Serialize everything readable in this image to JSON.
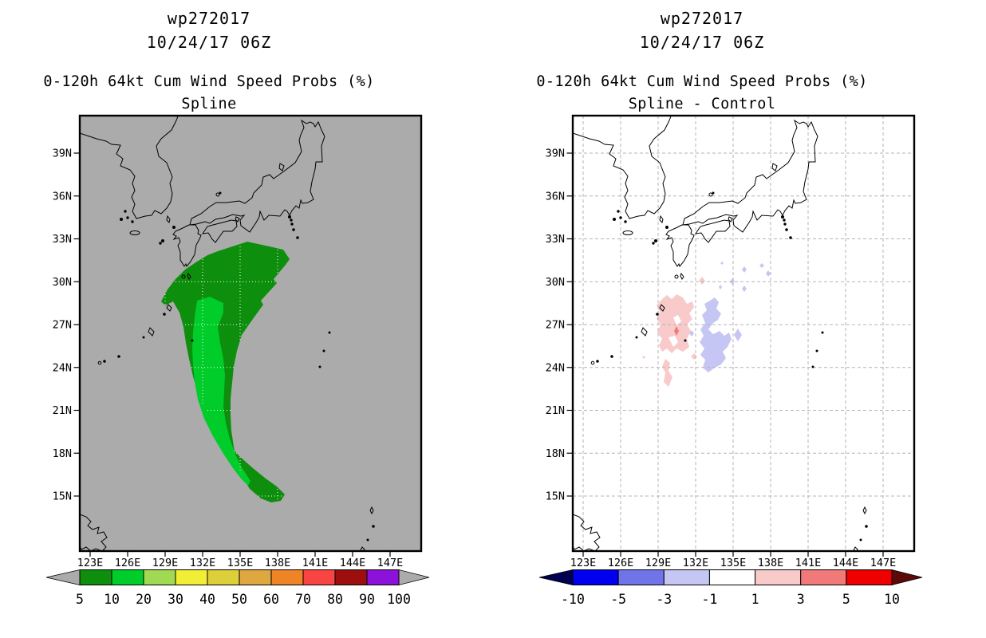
{
  "page": {
    "background": "#ffffff"
  },
  "panels": [
    {
      "name": "spline",
      "title": {
        "line1": "wp272017",
        "line2": "10/24/17 06Z",
        "line3": "0-120h 64kt Cum Wind Speed Probs (%)",
        "line4": "Spline"
      },
      "axes": {
        "lat_labels": [
          "39N",
          "36N",
          "33N",
          "30N",
          "27N",
          "24N",
          "21N",
          "18N",
          "15N"
        ],
        "lon_labels": [
          "123E",
          "126E",
          "129E",
          "132E",
          "135E",
          "138E",
          "141E",
          "144E",
          "147E"
        ]
      },
      "map": {
        "background": "#ababab",
        "coastline": "#000000",
        "graticule": "#ffffff"
      },
      "regions": [
        {
          "label": "5-10%",
          "color": "#0d8e0d"
        },
        {
          "label": "10-20%",
          "color": "#00cd2a"
        }
      ],
      "colorbar": {
        "labels": [
          "5",
          "10",
          "20",
          "30",
          "40",
          "50",
          "60",
          "70",
          "80",
          "90",
          "100"
        ],
        "colors": [
          "#0d8e0d",
          "#00cd2a",
          "#a0da52",
          "#f1ee35",
          "#dccf3a",
          "#dfa73f",
          "#ee8426",
          "#f94444",
          "#9d0e0e",
          "#8c12d9"
        ],
        "left_arrow": "#ababab",
        "right_arrow": "#ababab"
      }
    },
    {
      "name": "spline-minus-control",
      "title": {
        "line1": "wp272017",
        "line2": "10/24/17 06Z",
        "line3": "0-120h 64kt Cum Wind Speed Probs (%)",
        "line4": "Spline - Control"
      },
      "axes": {
        "lat_labels": [
          "39N",
          "36N",
          "33N",
          "30N",
          "27N",
          "24N",
          "21N",
          "18N",
          "15N"
        ],
        "lon_labels": [
          "123E",
          "126E",
          "129E",
          "132E",
          "135E",
          "138E",
          "141E",
          "144E",
          "147E"
        ]
      },
      "map": {
        "background": "#ffffff",
        "coastline": "#000000",
        "graticule": "#b4b4b4"
      },
      "regions": [
        {
          "label": "+1 to +3",
          "color": "#f8caca"
        },
        {
          "label": "+3 to +5",
          "color": "#f17979"
        },
        {
          "label": "-1 to -3",
          "color": "#c6c6f4"
        }
      ],
      "colorbar": {
        "labels": [
          "-10",
          "-5",
          "-3",
          "-1",
          "1",
          "3",
          "5",
          "10"
        ],
        "colors": [
          "#0000ee",
          "#7173e9",
          "#c6c6f4",
          "#ffffff",
          "#f8caca",
          "#f17979",
          "#ee0000"
        ],
        "left_arrow": "#000050",
        "right_arrow": "#5c0909"
      }
    }
  ],
  "chart_data": [
    {
      "type": "heatmap",
      "title": "wp272017 10/24/17 06Z",
      "subtitle": "0-120h 64kt Cum Wind Speed Probs (%) - Spline",
      "xlabel": "longitude",
      "ylabel": "latitude",
      "x_ticks": [
        "123E",
        "126E",
        "129E",
        "132E",
        "135E",
        "138E",
        "141E",
        "144E",
        "147E"
      ],
      "y_ticks": [
        "39N",
        "36N",
        "33N",
        "30N",
        "27N",
        "24N",
        "21N",
        "18N",
        "15N"
      ],
      "x_range": [
        "122E",
        "150E"
      ],
      "y_range": [
        "11N",
        "42N"
      ],
      "grid": "3-degree graticule; white dotted, visible over shaded contours",
      "background": "#ababab",
      "colorbar": {
        "orientation": "horizontal",
        "tick_values": [
          5,
          10,
          20,
          30,
          40,
          50,
          60,
          70,
          80,
          90,
          100
        ],
        "segment_colors": [
          "#0d8e0d",
          "#00cd2a",
          "#a0da52",
          "#f1ee35",
          "#dccf3a",
          "#dfa73f",
          "#ee8426",
          "#f94444",
          "#9d0e0e",
          "#8c12d9"
        ],
        "end_arrows": {
          "left": "#ababab",
          "right": "#ababab"
        }
      },
      "series": [
        {
          "name": "5-10% cumulative probability",
          "color": "#0d8e0d",
          "shape": "crescent band from ~32N/130-137E curving SSW to a tip near 16.5N/134.5E, concave toward the east"
        },
        {
          "name": "10-20% cumulative probability",
          "color": "#00cd2a",
          "shape": "inner crescent from ~30.5N/130.5-133E narrowing to ~18N/133.5E"
        }
      ]
    },
    {
      "type": "heatmap",
      "title": "wp272017 10/24/17 06Z",
      "subtitle": "0-120h 64kt Cum Wind Speed Probs (%) - Spline - Control",
      "xlabel": "longitude",
      "ylabel": "latitude",
      "x_ticks": [
        "123E",
        "126E",
        "129E",
        "132E",
        "135E",
        "138E",
        "141E",
        "144E",
        "147E"
      ],
      "y_ticks": [
        "39N",
        "36N",
        "33N",
        "30N",
        "27N",
        "24N",
        "21N",
        "18N",
        "15N"
      ],
      "x_range": [
        "122E",
        "150E"
      ],
      "y_range": [
        "11N",
        "42N"
      ],
      "grid": "3-degree graticule; gray dashed",
      "background": "#ffffff",
      "colorbar": {
        "orientation": "horizontal",
        "tick_values": [
          -10,
          -5,
          -3,
          -1,
          1,
          3,
          5,
          10
        ],
        "segment_colors": [
          "#0000ee",
          "#7173e9",
          "#c6c6f4",
          "#ffffff",
          "#f8caca",
          "#f17979",
          "#ee0000"
        ],
        "end_arrows": {
          "left": "#000050",
          "right": "#5c0909"
        }
      },
      "series": [
        {
          "name": "+1 to +3 difference",
          "color": "#f8caca",
          "shape": "patches ~26-29.5N/129-131E with small tail to ~24.5N"
        },
        {
          "name": "+3 to +5 difference",
          "color": "#f17979",
          "shape": "tiny spot ~27.7N/130.2E"
        },
        {
          "name": "-1 to -3 difference",
          "color": "#c6c6f4",
          "shape": "patches ~25.5-30N/131-133E plus small diamonds 29.5-31N/132-135.5E"
        }
      ]
    }
  ]
}
